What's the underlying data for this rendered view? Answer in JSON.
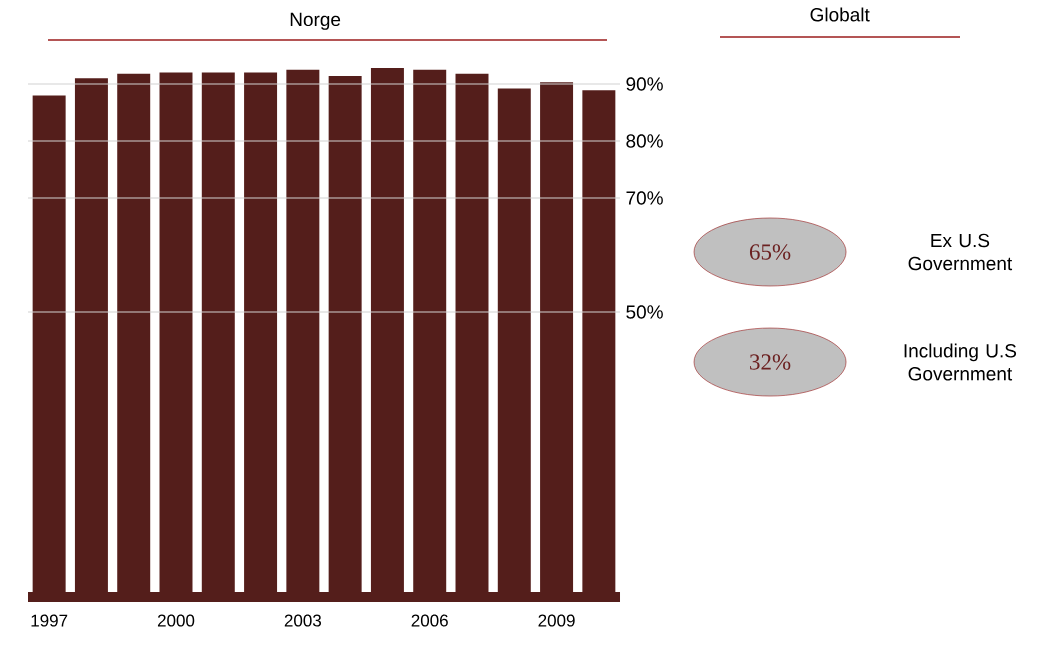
{
  "chart_data": [
    {
      "type": "bar",
      "title": "Norge",
      "categories": [
        "1997",
        null,
        null,
        "2000",
        null,
        null,
        "2003",
        null,
        null,
        "2006",
        null,
        null,
        "2009",
        null
      ],
      "values": [
        88,
        91,
        91.8,
        92,
        92,
        92,
        92.5,
        91.4,
        92.8,
        92.5,
        91.8,
        89.2,
        90.3,
        88.9
      ],
      "color": "#541e1b",
      "ylim": [
        0,
        93
      ],
      "yticks": [
        {
          "value": 50,
          "label": "50%"
        },
        {
          "value": 70,
          "label": "70%"
        },
        {
          "value": 80,
          "label": "80%"
        },
        {
          "value": 90,
          "label": "90%"
        }
      ],
      "grid": "y"
    },
    {
      "type": "other",
      "title": "Globalt",
      "categories": [
        "Ex U.S Government",
        "Including U.S Government"
      ],
      "values": [
        65,
        32
      ],
      "value_labels": [
        "65%",
        "32%"
      ],
      "color": "#c0c0c0"
    }
  ]
}
